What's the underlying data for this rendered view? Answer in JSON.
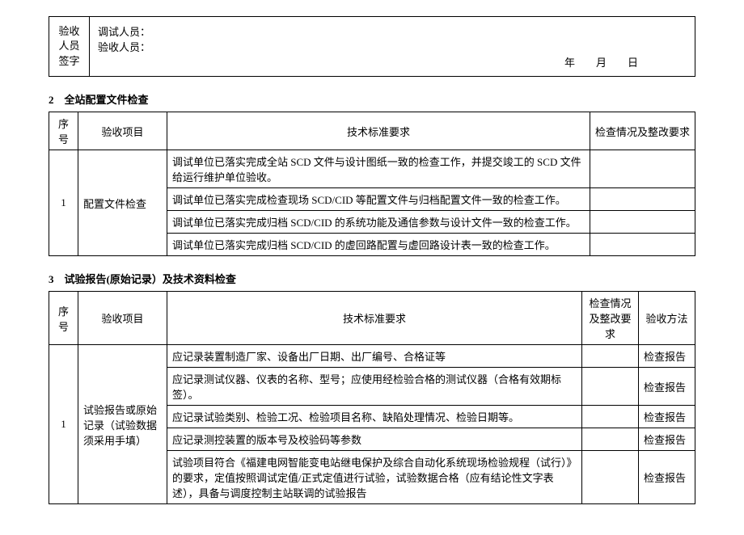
{
  "signature": {
    "label_col": "验收\n人员\n签字",
    "line1": "调试人员：",
    "line2": "验收人员：",
    "date": "年　　月　　日"
  },
  "section2": {
    "title": "2　全站配置文件检查",
    "headers": {
      "seq": "序号",
      "item": "验收项目",
      "req": "技术标准要求",
      "check": "检查情况及整改要求"
    },
    "row": {
      "seq": "1",
      "item": "配置文件检查",
      "reqs": [
        "调试单位已落实完成全站 SCD 文件与设计图纸一致的检查工作，并提交竣工的 SCD 文件给运行维护单位验收。",
        "调试单位已落实完成检查现场 SCD/CID 等配置文件与归档配置文件一致的检查工作。",
        "调试单位已落实完成归档 SCD/CID 的系统功能及通信参数与设计文件一致的检查工作。",
        "调试单位已落实完成归档 SCD/CID 的虚回路配置与虚回路设计表一致的检查工作。"
      ]
    }
  },
  "section3": {
    "title": "3　试验报告(原始记录）及技术资料检查",
    "headers": {
      "seq": "序号",
      "item": "验收项目",
      "req": "技术标准要求",
      "check": "检查情况及整改要求",
      "method": "验收方法"
    },
    "row": {
      "seq": "1",
      "item": "试验报告或原始记录（试验数据须采用手填）",
      "reqs": [
        "应记录装置制造厂家、设备出厂日期、出厂编号、合格证等",
        "应记录测试仪器、仪表的名称、型号；应使用经检验合格的测试仪器（合格有效期标签）。",
        "应记录试验类别、检验工况、检验项目名称、缺陷处理情况、检验日期等。",
        "应记录测控装置的版本号及校验码等参数",
        "试验项目符合《福建电网智能变电站继电保护及综合自动化系统现场检验规程（试行）》的要求，定值按照调试定值/正式定值进行试验，试验数据合格（应有结论性文字表述），具备与调度控制主站联调的试验报告"
      ],
      "methods": [
        "检查报告",
        "检查报告",
        "检查报告",
        "检查报告",
        "检查报告"
      ]
    }
  }
}
